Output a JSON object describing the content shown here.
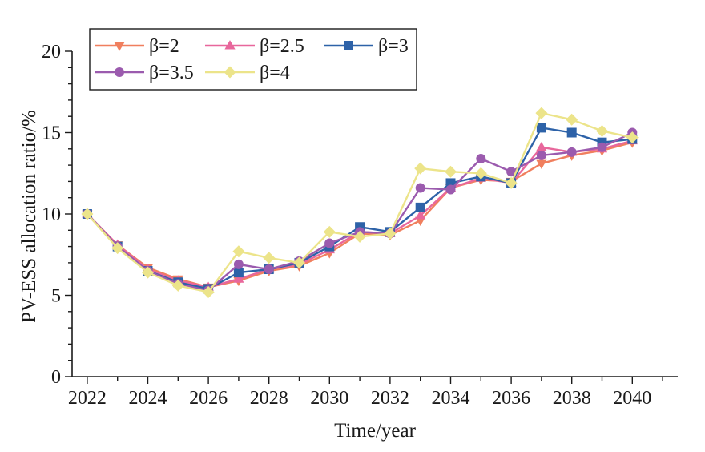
{
  "chart_data": {
    "type": "line",
    "title": "",
    "xlabel": "Time/year",
    "ylabel": "PV-ESS allocation ratio/%",
    "xlim": [
      2021.5,
      2041.5
    ],
    "ylim": [
      0,
      20
    ],
    "x_ticks": [
      2022,
      2024,
      2026,
      2028,
      2030,
      2032,
      2034,
      2036,
      2038,
      2040
    ],
    "y_ticks": [
      0,
      5,
      10,
      15,
      20
    ],
    "grid": false,
    "legend_position": "top-left",
    "x": [
      2022,
      2023,
      2024,
      2025,
      2026,
      2027,
      2028,
      2029,
      2030,
      2031,
      2032,
      2033,
      2034,
      2035,
      2036,
      2037,
      2038,
      2039,
      2040
    ],
    "series": [
      {
        "name": "β=2",
        "color": "#F07F5E",
        "marker": "triangle-down",
        "values": [
          10.0,
          8.1,
          6.7,
          6.0,
          5.5,
          5.9,
          6.5,
          6.8,
          7.6,
          8.8,
          8.7,
          9.6,
          11.6,
          12.1,
          12.0,
          13.1,
          13.6,
          13.9,
          14.4
        ]
      },
      {
        "name": "β=2.5",
        "color": "#E8679C",
        "marker": "triangle-up",
        "values": [
          10.0,
          8.1,
          6.6,
          5.9,
          5.5,
          6.0,
          6.6,
          6.9,
          7.8,
          8.9,
          8.8,
          9.9,
          11.6,
          12.2,
          11.9,
          14.1,
          13.8,
          14.0,
          14.5
        ]
      },
      {
        "name": "β=3",
        "color": "#2D62A8",
        "marker": "square",
        "values": [
          10.0,
          8.0,
          6.5,
          5.8,
          5.4,
          6.4,
          6.6,
          7.0,
          8.0,
          9.2,
          8.9,
          10.4,
          11.9,
          12.3,
          11.9,
          15.3,
          15.0,
          14.4,
          14.6
        ]
      },
      {
        "name": "β=3.5",
        "color": "#9B5BAE",
        "marker": "circle",
        "values": [
          10.0,
          8.0,
          6.5,
          5.7,
          5.3,
          6.9,
          6.6,
          7.1,
          8.2,
          8.9,
          8.8,
          11.6,
          11.5,
          13.4,
          12.6,
          13.6,
          13.8,
          14.1,
          15.0
        ]
      },
      {
        "name": "β=4",
        "color": "#ECE48A",
        "marker": "diamond",
        "values": [
          10.0,
          7.9,
          6.4,
          5.6,
          5.2,
          7.7,
          7.3,
          7.0,
          8.9,
          8.6,
          8.8,
          12.8,
          12.6,
          12.5,
          11.9,
          16.2,
          15.8,
          15.1,
          14.7
        ]
      }
    ]
  }
}
